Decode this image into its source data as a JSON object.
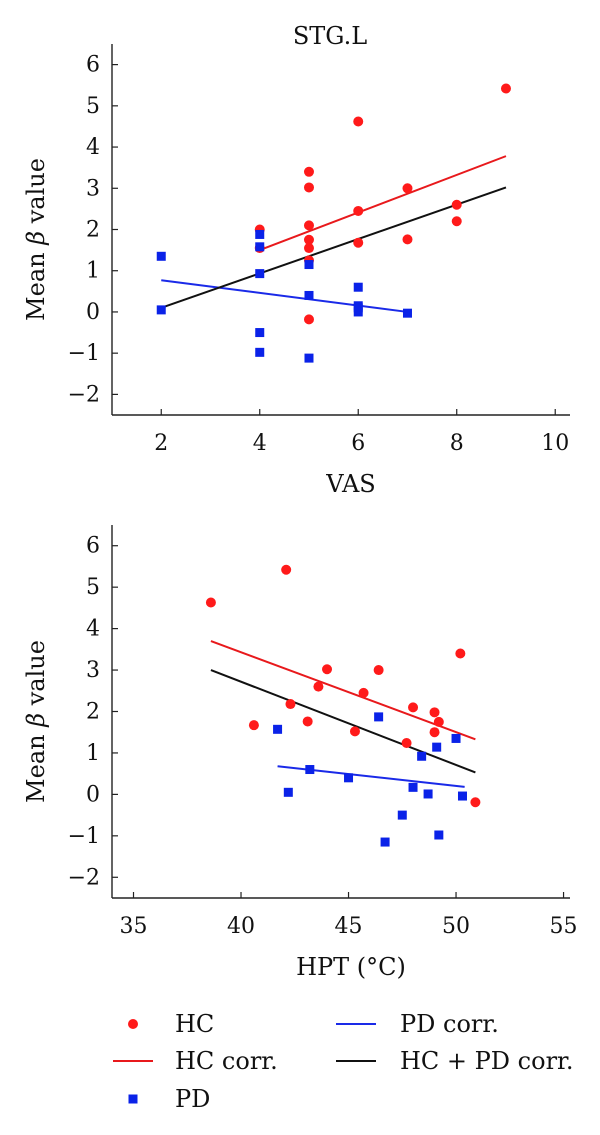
{
  "chart_data": [
    {
      "type": "scatter",
      "title": "STG.L",
      "xlabel": "VAS",
      "ylabel_pre": "Mean ",
      "ylabel_beta": "β",
      "ylabel_post": " value",
      "xlim": [
        1,
        10.3
      ],
      "ylim": [
        -2.5,
        6.5
      ],
      "xticks": [
        2,
        4,
        6,
        8,
        10
      ],
      "yticks": [
        -2,
        -1,
        0,
        1,
        2,
        3,
        4,
        5,
        6
      ],
      "series": [
        {
          "name": "HC",
          "kind": "points",
          "marker": "circle",
          "color": "#ff1a1a",
          "points": [
            [
              4,
              2.0
            ],
            [
              4,
              1.55
            ],
            [
              5,
              3.4
            ],
            [
              5,
              3.02
            ],
            [
              5,
              2.1
            ],
            [
              5,
              1.75
            ],
            [
              5,
              1.55
            ],
            [
              5,
              1.25
            ],
            [
              5,
              -0.18
            ],
            [
              6,
              4.62
            ],
            [
              6,
              2.45
            ],
            [
              6,
              1.68
            ],
            [
              7,
              3.0
            ],
            [
              7,
              1.76
            ],
            [
              8,
              2.6
            ],
            [
              8,
              2.2
            ],
            [
              9,
              5.42
            ]
          ]
        },
        {
          "name": "PD",
          "kind": "points",
          "marker": "square",
          "color": "#0a22e8",
          "points": [
            [
              2,
              1.35
            ],
            [
              2,
              0.05
            ],
            [
              4,
              1.88
            ],
            [
              4,
              1.58
            ],
            [
              4,
              0.93
            ],
            [
              4,
              -0.5
            ],
            [
              4,
              -0.98
            ],
            [
              5,
              1.15
            ],
            [
              5,
              0.4
            ],
            [
              5,
              -1.12
            ],
            [
              6,
              0.6
            ],
            [
              6,
              0.15
            ],
            [
              6,
              0.1
            ],
            [
              6,
              0.0
            ],
            [
              7,
              -0.03
            ]
          ]
        },
        {
          "name": "HC corr.",
          "kind": "line",
          "color": "#e8191c",
          "points": [
            [
              4,
              1.5
            ],
            [
              9,
              3.78
            ]
          ]
        },
        {
          "name": "PD corr.",
          "kind": "line",
          "color": "#1a2ae8",
          "points": [
            [
              2,
              0.77
            ],
            [
              7,
              0.0
            ]
          ]
        },
        {
          "name": "HC + PD corr.",
          "kind": "line",
          "color": "#111111",
          "points": [
            [
              2,
              0.1
            ],
            [
              9,
              3.02
            ]
          ]
        }
      ]
    },
    {
      "type": "scatter",
      "title": "",
      "xlabel": "HPT (°C)",
      "ylabel_pre": "Mean ",
      "ylabel_beta": "β",
      "ylabel_post": " value",
      "xlim": [
        34,
        55.3
      ],
      "ylim": [
        -2.5,
        6.5
      ],
      "xticks": [
        35,
        40,
        45,
        50,
        55
      ],
      "yticks": [
        -2,
        -1,
        0,
        1,
        2,
        3,
        4,
        5,
        6
      ],
      "series": [
        {
          "name": "HC",
          "kind": "points",
          "marker": "circle",
          "color": "#ff1a1a",
          "points": [
            [
              38.6,
              4.63
            ],
            [
              40.6,
              1.67
            ],
            [
              42.1,
              5.42
            ],
            [
              42.3,
              2.18
            ],
            [
              43.1,
              1.76
            ],
            [
              43.6,
              2.6
            ],
            [
              44.0,
              3.02
            ],
            [
              45.3,
              1.52
            ],
            [
              45.7,
              2.45
            ],
            [
              46.4,
              3.0
            ],
            [
              47.7,
              1.24
            ],
            [
              48.0,
              2.1
            ],
            [
              49.0,
              1.98
            ],
            [
              49.0,
              1.5
            ],
            [
              49.2,
              1.75
            ],
            [
              50.2,
              3.4
            ],
            [
              50.9,
              -0.19
            ]
          ]
        },
        {
          "name": "PD",
          "kind": "points",
          "marker": "square",
          "color": "#0a22e8",
          "points": [
            [
              41.7,
              1.57
            ],
            [
              42.2,
              0.05
            ],
            [
              43.2,
              0.6
            ],
            [
              45.0,
              0.4
            ],
            [
              46.4,
              1.87
            ],
            [
              46.7,
              -1.15
            ],
            [
              47.5,
              -0.5
            ],
            [
              48.0,
              0.17
            ],
            [
              48.4,
              0.92
            ],
            [
              48.7,
              0.01
            ],
            [
              49.1,
              1.14
            ],
            [
              49.2,
              -0.98
            ],
            [
              50.0,
              1.35
            ],
            [
              50.3,
              -0.04
            ]
          ]
        },
        {
          "name": "HC corr.",
          "kind": "line",
          "color": "#e8191c",
          "points": [
            [
              38.6,
              3.7
            ],
            [
              50.9,
              1.33
            ]
          ]
        },
        {
          "name": "PD corr.",
          "kind": "line",
          "color": "#1a2ae8",
          "points": [
            [
              41.7,
              0.68
            ],
            [
              50.4,
              0.18
            ]
          ]
        },
        {
          "name": "HC + PD corr.",
          "kind": "line",
          "color": "#111111",
          "points": [
            [
              38.6,
              3.0
            ],
            [
              50.9,
              0.53
            ]
          ]
        }
      ]
    }
  ],
  "legend": {
    "items": [
      {
        "key": "hc",
        "label": "HC",
        "marker": "circle",
        "color": "#ff1a1a"
      },
      {
        "key": "hc-corr",
        "label": "HC corr.",
        "marker": "line",
        "color": "#e8191c"
      },
      {
        "key": "pd",
        "label": "PD",
        "marker": "square",
        "color": "#0a22e8"
      },
      {
        "key": "pd-corr",
        "label": "PD corr.",
        "marker": "line",
        "color": "#1a2ae8"
      },
      {
        "key": "hc-pd-corr",
        "label": "HC + PD corr.",
        "marker": "line",
        "color": "#111111"
      }
    ]
  }
}
